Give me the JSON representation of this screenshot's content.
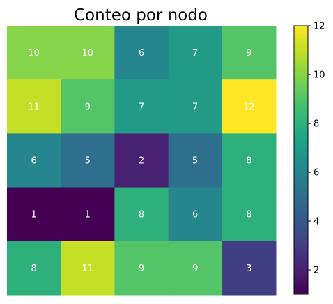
{
  "chart_data": {
    "type": "heatmap",
    "title": "Conteo por nodo",
    "rows": 5,
    "cols": 5,
    "values": [
      [
        10,
        10,
        6,
        7,
        9
      ],
      [
        11,
        9,
        7,
        7,
        12
      ],
      [
        6,
        5,
        2,
        5,
        8
      ],
      [
        1,
        1,
        8,
        6,
        8
      ],
      [
        8,
        11,
        9,
        9,
        3
      ]
    ],
    "colormap": "viridis",
    "value_range": [
      1,
      12
    ],
    "colorbar": {
      "ticks": [
        2,
        4,
        6,
        8,
        10,
        12
      ],
      "tick_labels": [
        "2",
        "4",
        "6",
        "8",
        "10",
        "12"
      ],
      "position": "right"
    },
    "cell_label_color": "#ffffff",
    "axes_visible": false
  }
}
